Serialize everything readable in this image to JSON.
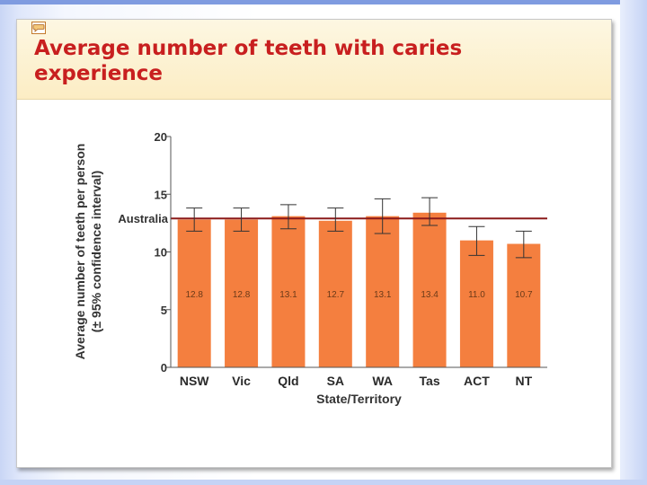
{
  "slide": {
    "title_line1": "Average number of teeth with caries",
    "title_line2": "experience"
  },
  "colors": {
    "bar": "#f47f3f",
    "reference_line": "#8b1a1a",
    "title": "#c81f1f"
  },
  "chart_data": {
    "type": "bar",
    "title": "Average number of teeth with caries experience",
    "xlabel": "State/Territory",
    "ylabel": "Average number of teeth per person",
    "ylabel2": "(± 95% confidence interval)",
    "categories": [
      "NSW",
      "Vic",
      "Qld",
      "SA",
      "WA",
      "Tas",
      "ACT",
      "NT"
    ],
    "values": [
      12.8,
      12.8,
      13.1,
      12.7,
      13.1,
      13.4,
      11.0,
      10.7
    ],
    "value_labels": [
      "12.8",
      "12.8",
      "13.1",
      "12.7",
      "13.1",
      "13.4",
      "11.0",
      "10.7"
    ],
    "ci_low": [
      11.8,
      11.8,
      12.0,
      11.8,
      11.6,
      12.3,
      9.7,
      9.5
    ],
    "ci_high": [
      13.8,
      13.8,
      14.1,
      13.8,
      14.6,
      14.7,
      12.2,
      11.8
    ],
    "reference": {
      "label": "Australia",
      "value": 12.9
    },
    "ylim": [
      0,
      20
    ],
    "yticks": [
      0,
      5,
      10,
      15,
      20
    ],
    "grid": false,
    "legend": "none"
  }
}
